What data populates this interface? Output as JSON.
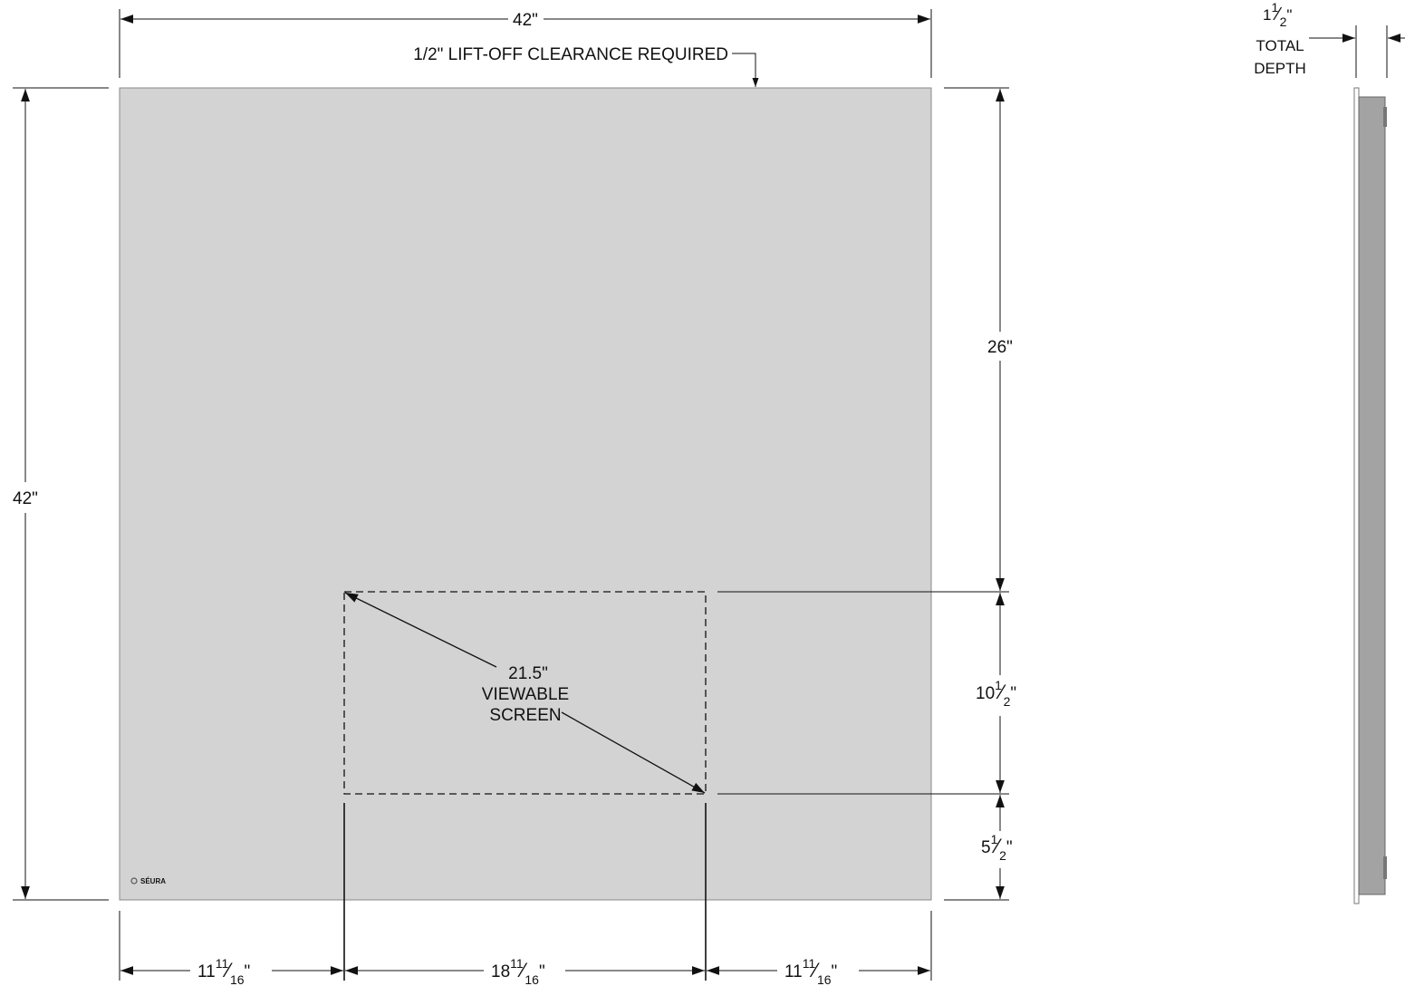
{
  "colors": {
    "mirror_face": "#d3d3d3",
    "mirror_edge": "#8a8a8a",
    "side_body": "#a3a3a3",
    "line": "#111111"
  },
  "brand_logo": "SÉURA",
  "top_width": "42\"",
  "clearance_note": "1/2\" LIFT-OFF CLEARANCE REQUIRED",
  "left_height": "42\"",
  "right_upper": "26\"",
  "right_middle": {
    "whole": "10",
    "num": "1",
    "den": "2",
    "unit": "\""
  },
  "right_lower": {
    "whole": "5",
    "num": "1",
    "den": "2",
    "unit": "\""
  },
  "bottom_left": {
    "whole": "11",
    "num": "11",
    "den": "16",
    "unit": "\""
  },
  "bottom_center": {
    "whole": "18",
    "num": "11",
    "den": "16",
    "unit": "\""
  },
  "bottom_right": {
    "whole": "11",
    "num": "11",
    "den": "16",
    "unit": "\""
  },
  "screen": {
    "size": "21.5\"",
    "line1": "VIEWABLE",
    "line2": "SCREEN"
  },
  "depth": {
    "value": {
      "whole": "1",
      "num": "1",
      "den": "2",
      "unit": "\""
    },
    "line1": "TOTAL",
    "line2": "DEPTH"
  }
}
